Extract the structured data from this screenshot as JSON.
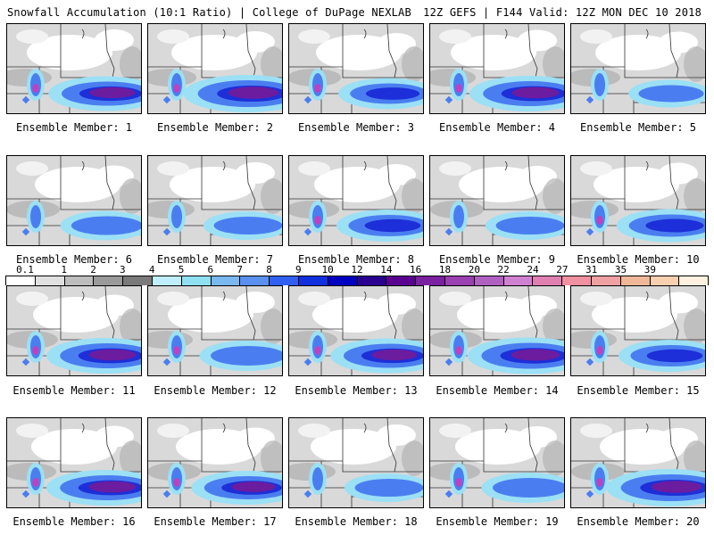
{
  "header": {
    "left": "Snowfall Accumulation (10:1 Ratio) | College of DuPage NEXLAB",
    "right": "12Z GEFS | F144 Valid: 12Z MON DEC 10 2018"
  },
  "panels": [
    {
      "label": "Ensemble Member: 1",
      "intensity": 0.75
    },
    {
      "label": "Ensemble Member: 2",
      "intensity": 0.9
    },
    {
      "label": "Ensemble Member: 3",
      "intensity": 0.55
    },
    {
      "label": "Ensemble Member: 4",
      "intensity": 0.8
    },
    {
      "label": "Ensemble Member: 5",
      "intensity": 0.35
    },
    {
      "label": "Ensemble Member: 6",
      "intensity": 0.45
    },
    {
      "label": "Ensemble Member: 7",
      "intensity": 0.4
    },
    {
      "label": "Ensemble Member: 8",
      "intensity": 0.6
    },
    {
      "label": "Ensemble Member: 9",
      "intensity": 0.4
    },
    {
      "label": "Ensemble Member: 10",
      "intensity": 0.65
    },
    {
      "label": "Ensemble Member: 11",
      "intensity": 0.8
    },
    {
      "label": "Ensemble Member: 12",
      "intensity": 0.5
    },
    {
      "label": "Ensemble Member: 13",
      "intensity": 0.75
    },
    {
      "label": "Ensemble Member: 14",
      "intensity": 0.85
    },
    {
      "label": "Ensemble Member: 15",
      "intensity": 0.6
    },
    {
      "label": "Ensemble Member: 16",
      "intensity": 0.8
    },
    {
      "label": "Ensemble Member: 17",
      "intensity": 0.7
    },
    {
      "label": "Ensemble Member: 18",
      "intensity": 0.4
    },
    {
      "label": "Ensemble Member: 19",
      "intensity": 0.5
    },
    {
      "label": "Ensemble Member: 20",
      "intensity": 0.9
    }
  ],
  "colorbar": {
    "labels": [
      "0.1",
      "1",
      "2",
      "3",
      "4",
      "5",
      "6",
      "7",
      "8",
      "9",
      "10",
      "12",
      "14",
      "16",
      "18",
      "20",
      "22",
      "24",
      "27",
      "31",
      "35",
      "39"
    ],
    "colors": [
      "#ffffff",
      "#e0e0e0",
      "#bdbdbd",
      "#9a9a9a",
      "#7a7a7a",
      "#bfefff",
      "#8fe0f0",
      "#7ab8f0",
      "#5a90f0",
      "#3060f0",
      "#1030e0",
      "#0000c0",
      "#2a0090",
      "#5a0090",
      "#7a20a0",
      "#9a40b0",
      "#b060c0",
      "#d080d0",
      "#e080b0",
      "#f090a0",
      "#f0a0a0",
      "#f0b898",
      "#f8d0b0",
      "#fff0e0"
    ]
  },
  "palette": {
    "light_gray": "#d9d9d9",
    "mid_gray": "#b3b3b3",
    "light_blue": "#9be0f5",
    "blue": "#4a7ef0",
    "dark_blue": "#1d2fd8",
    "purple": "#6c1c9e",
    "magenta": "#c040c0"
  }
}
